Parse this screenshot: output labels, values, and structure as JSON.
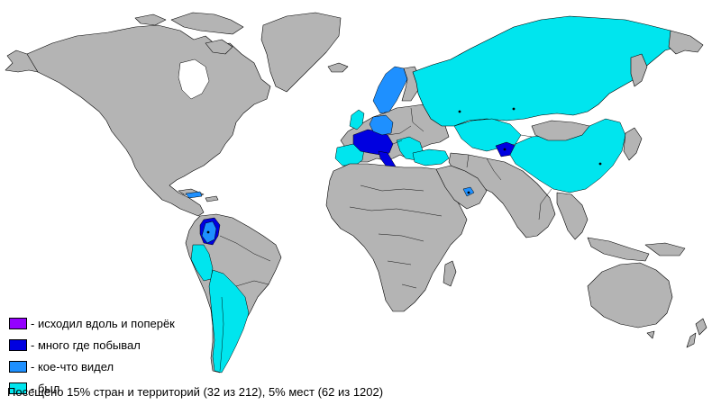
{
  "colors": {
    "land": "#b4b4b4",
    "level_1": "#00e5ee",
    "level_2": "#1e90ff",
    "level_3": "#0000e0",
    "level_4": "#9400ff"
  },
  "legend": [
    {
      "label": "- исходил вдоль и поперёк",
      "color": "#9400ff"
    },
    {
      "label": "- много где побывал",
      "color": "#0000e0"
    },
    {
      "label": "- кое-что видел",
      "color": "#1e90ff"
    },
    {
      "label": "- был",
      "color": "#00e5ee"
    }
  ],
  "summary": "Посещено 15% стран и территорий (32 из 212), 5% мест (62 из 1202)"
}
